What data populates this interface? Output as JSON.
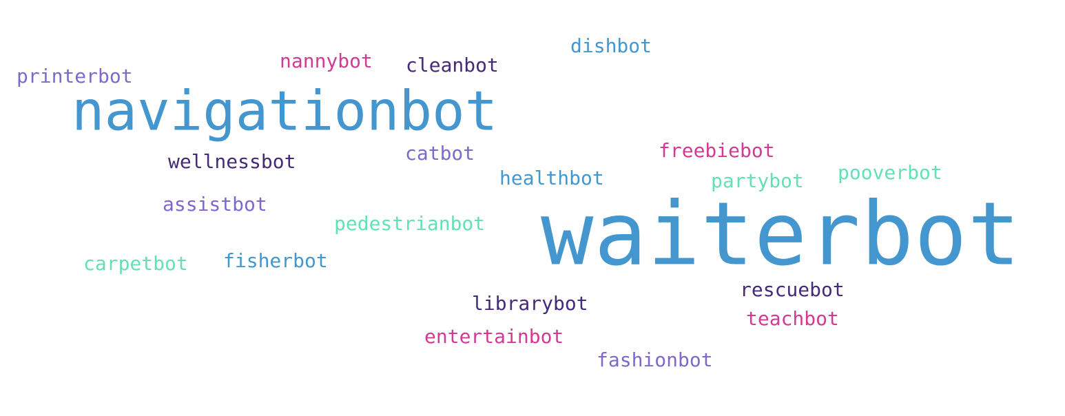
{
  "colors": {
    "blue": "#4496cf",
    "magenta": "#d23b93",
    "dark_purple": "#442a78",
    "purple": "#7f68cc",
    "mint": "#63e1b6"
  },
  "words": {
    "waiterbot": {
      "text": "waiterbot",
      "color": "#4496cf"
    },
    "navigationbot": {
      "text": "navigationbot",
      "color": "#4496cf"
    },
    "dishbot": {
      "text": "dishbot",
      "color": "#4496cf"
    },
    "nannybot": {
      "text": "nannybot",
      "color": "#d23b93"
    },
    "cleanbot": {
      "text": "cleanbot",
      "color": "#442a78"
    },
    "printerbot": {
      "text": "printerbot",
      "color": "#7f68cc"
    },
    "freebiebot": {
      "text": "freebiebot",
      "color": "#d23b93"
    },
    "catbot": {
      "text": "catbot",
      "color": "#7f68cc"
    },
    "wellnessbot": {
      "text": "wellnessbot",
      "color": "#442a78"
    },
    "pooverbot": {
      "text": "pooverbot",
      "color": "#63e1b6"
    },
    "healthbot": {
      "text": "healthbot",
      "color": "#4496cf"
    },
    "partybot": {
      "text": "partybot",
      "color": "#63e1b6"
    },
    "assistbot": {
      "text": "assistbot",
      "color": "#7f68cc"
    },
    "pedestrianbot": {
      "text": "pedestrianbot",
      "color": "#63e1b6"
    },
    "fisherbot": {
      "text": "fisherbot",
      "color": "#4496cf"
    },
    "carpetbot": {
      "text": "carpetbot",
      "color": "#63e1b6"
    },
    "rescuebot": {
      "text": "rescuebot",
      "color": "#442a78"
    },
    "librarybot": {
      "text": "librarybot",
      "color": "#442a78"
    },
    "teachbot": {
      "text": "teachbot",
      "color": "#d23b93"
    },
    "entertainbot": {
      "text": "entertainbot",
      "color": "#d23b93"
    },
    "fashionbot": {
      "text": "fashionbot",
      "color": "#7f68cc"
    }
  }
}
